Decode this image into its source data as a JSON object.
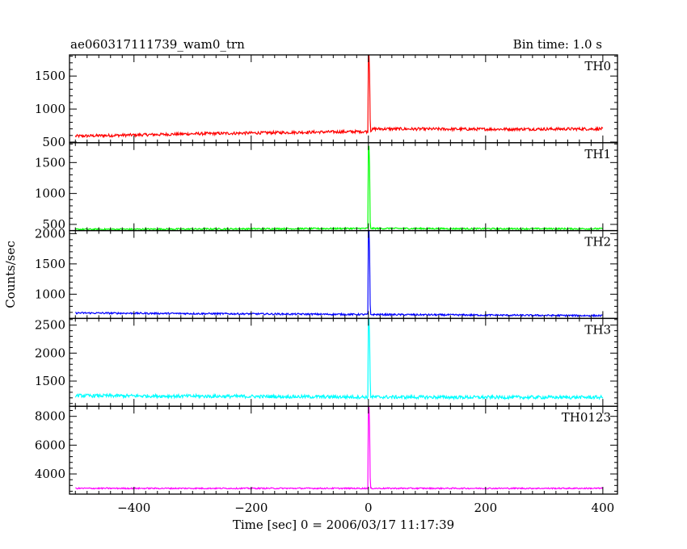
{
  "chart_data": {
    "type": "line",
    "title_left": "ae060317111739_wam0_trn",
    "title_right": "Bin time: 1.0 s",
    "xlabel": "Time [sec] 0 = 2006/03/17 11:17:39",
    "ylabel": "Counts/sec",
    "xlim": [
      -510,
      425
    ],
    "x_ticks": [
      -400,
      -200,
      0,
      200,
      400
    ],
    "x_tick_labels": [
      "−400",
      "−200",
      "0",
      "200",
      "400"
    ],
    "grid": false,
    "panels": [
      {
        "name": "TH0",
        "color": "#ff0000",
        "ylim": [
          490,
          1820
        ],
        "y_ticks": [
          500,
          1000,
          1500
        ],
        "baseline": [
          [
            -500,
            590
          ],
          [
            -300,
            625
          ],
          [
            -100,
            650
          ],
          [
            0,
            660
          ],
          [
            10,
            700
          ],
          [
            200,
            695
          ],
          [
            400,
            700
          ]
        ],
        "noise": 22,
        "peak": {
          "x": 2,
          "y": 1820
        }
      },
      {
        "name": "TH1",
        "color": "#00ff00",
        "ylim": [
          400,
          1820
        ],
        "y_ticks": [
          500,
          1000,
          1500
        ],
        "baseline": [
          [
            -500,
            420
          ],
          [
            -300,
            425
          ],
          [
            0,
            435
          ],
          [
            200,
            430
          ],
          [
            400,
            430
          ]
        ],
        "noise": 12,
        "peak": {
          "x": 2,
          "y": 1760
        }
      },
      {
        "name": "TH2",
        "color": "#0000ff",
        "ylim": [
          600,
          2050
        ],
        "y_ticks": [
          1000,
          1500,
          2000
        ],
        "baseline": [
          [
            -500,
            690
          ],
          [
            -300,
            680
          ],
          [
            0,
            665
          ],
          [
            200,
            655
          ],
          [
            400,
            645
          ]
        ],
        "noise": 14,
        "peak": {
          "x": 2,
          "y": 2050
        }
      },
      {
        "name": "TH3",
        "color": "#00ffff",
        "ylim": [
          1050,
          2620
        ],
        "y_ticks": [
          1500,
          2000,
          2500
        ],
        "baseline": [
          [
            -500,
            1240
          ],
          [
            -200,
            1225
          ],
          [
            0,
            1215
          ],
          [
            200,
            1210
          ],
          [
            400,
            1210
          ]
        ],
        "noise": 30,
        "peak": {
          "x": 2,
          "y": 2620
        }
      },
      {
        "name": "TH0123",
        "color": "#ff00ff",
        "ylim": [
          2600,
          8700
        ],
        "y_ticks": [
          4000,
          6000,
          8000
        ],
        "baseline": [
          [
            -500,
            3000
          ],
          [
            0,
            3000
          ],
          [
            400,
            3000
          ]
        ],
        "noise": 45,
        "peak": {
          "x": 2,
          "y": 8700
        }
      }
    ]
  }
}
